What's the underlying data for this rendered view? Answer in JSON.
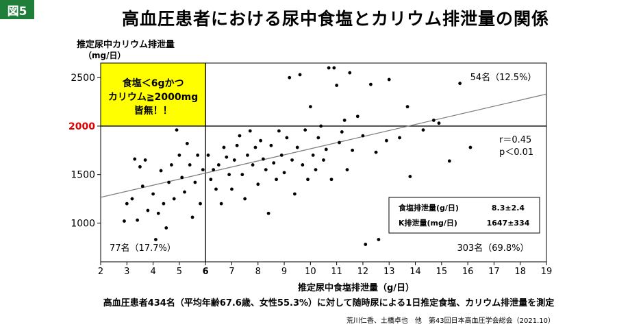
{
  "figure_tag": "図5",
  "title": "高血圧患者における尿中食塩とカリウム排泄量の関係",
  "caption": "高血圧患者434名（平均年齢67.6歳、女性55.3%）に対して随時尿による1日推定食塩、カリウム排泄量を測定",
  "source": "荒川仁香、土橋卓也　他　第43回日本高血圧学会総会（2021.10）",
  "colors": {
    "figure_tag_bg": "#1e7e3a",
    "highlight_box": "#ffff00",
    "threshold_label": "#e00000",
    "points": "#000000",
    "regression_line": "#808080"
  },
  "chart_data": {
    "type": "scatter",
    "xlabel": "推定尿中食塩排泄量（g/日）",
    "ylabel": "推定尿中カリウム排泄量",
    "ylabel_unit": "（mg/日）",
    "xlim": [
      2,
      19
    ],
    "ylim": [
      600,
      2650
    ],
    "xticks": [
      2,
      3,
      4,
      5,
      6,
      7,
      8,
      9,
      10,
      11,
      12,
      13,
      14,
      15,
      16,
      17,
      18,
      19
    ],
    "yticks": [
      1000,
      1500,
      2000,
      2500
    ],
    "highlight_x_tick": 6,
    "highlight_y_tick": 2000,
    "thresholds": {
      "x": 6,
      "y": 2000
    },
    "quadrant_labels": {
      "top_left": "食塩＜6gかつ\nカリウム≧2000mg\n皆無！！",
      "top_right": "54名（12.5%）",
      "bottom_left": "77名（17.7%）",
      "bottom_right": "303名（69.8%）"
    },
    "stats_annotation": "r＝0.45\np＜0.01",
    "summary_table": [
      {
        "label": "食塩排泄量(g/日)",
        "value": "8.3±2.4"
      },
      {
        "label": "K排泄量(mg/日)",
        "value": "1647±334"
      }
    ],
    "regression": {
      "x": [
        2,
        19
      ],
      "y": [
        1265,
        2330
      ]
    },
    "points": [
      [
        2.9,
        1020
      ],
      [
        3.0,
        1200
      ],
      [
        3.2,
        1250
      ],
      [
        3.3,
        1660
      ],
      [
        3.4,
        1030
      ],
      [
        3.5,
        1580
      ],
      [
        3.6,
        1380
      ],
      [
        3.7,
        1650
      ],
      [
        3.8,
        1130
      ],
      [
        4.0,
        1300
      ],
      [
        4.1,
        830
      ],
      [
        4.2,
        1100
      ],
      [
        4.3,
        1540
      ],
      [
        4.4,
        1200
      ],
      [
        4.5,
        950
      ],
      [
        4.6,
        1420
      ],
      [
        4.7,
        1600
      ],
      [
        4.8,
        1250
      ],
      [
        4.9,
        1960
      ],
      [
        5.0,
        1700
      ],
      [
        5.1,
        1470
      ],
      [
        5.2,
        1320
      ],
      [
        5.3,
        1820
      ],
      [
        5.4,
        1600
      ],
      [
        5.5,
        1060
      ],
      [
        5.6,
        1420
      ],
      [
        5.7,
        1700
      ],
      [
        5.8,
        1200
      ],
      [
        5.9,
        1550
      ],
      [
        6.1,
        1700
      ],
      [
        6.2,
        1450
      ],
      [
        6.3,
        1550
      ],
      [
        6.4,
        1350
      ],
      [
        6.5,
        1600
      ],
      [
        6.6,
        1200
      ],
      [
        6.7,
        1780
      ],
      [
        6.8,
        1680
      ],
      [
        6.9,
        1500
      ],
      [
        7.0,
        1350
      ],
      [
        7.1,
        1650
      ],
      [
        7.2,
        1800
      ],
      [
        7.3,
        1900
      ],
      [
        7.4,
        1500
      ],
      [
        7.5,
        1250
      ],
      [
        7.6,
        1700
      ],
      [
        7.7,
        1950
      ],
      [
        7.8,
        1600
      ],
      [
        7.9,
        1780
      ],
      [
        8.0,
        1400
      ],
      [
        8.1,
        1850
      ],
      [
        8.2,
        1660
      ],
      [
        8.3,
        1550
      ],
      [
        8.4,
        1100
      ],
      [
        8.5,
        1800
      ],
      [
        8.6,
        1620
      ],
      [
        8.7,
        1450
      ],
      [
        8.8,
        1950
      ],
      [
        8.9,
        1700
      ],
      [
        9.0,
        1520
      ],
      [
        9.1,
        1880
      ],
      [
        9.2,
        2500
      ],
      [
        9.3,
        1650
      ],
      [
        9.4,
        1300
      ],
      [
        9.5,
        1780
      ],
      [
        9.6,
        2530
      ],
      [
        9.7,
        1600
      ],
      [
        9.8,
        1960
      ],
      [
        9.9,
        1450
      ],
      [
        10.0,
        2200
      ],
      [
        10.1,
        1700
      ],
      [
        10.2,
        1550
      ],
      [
        10.3,
        1880
      ],
      [
        10.4,
        2000
      ],
      [
        10.5,
        1650
      ],
      [
        10.6,
        1760
      ],
      [
        10.7,
        2600
      ],
      [
        10.8,
        1450
      ],
      [
        10.9,
        2600
      ],
      [
        11.0,
        2420
      ],
      [
        11.1,
        1830
      ],
      [
        11.2,
        1940
      ],
      [
        11.3,
        2060
      ],
      [
        11.4,
        1550
      ],
      [
        11.5,
        2550
      ],
      [
        11.6,
        1750
      ],
      [
        11.8,
        2100
      ],
      [
        12.0,
        1900
      ],
      [
        12.1,
        780
      ],
      [
        12.3,
        2430
      ],
      [
        12.5,
        1730
      ],
      [
        12.6,
        830
      ],
      [
        12.9,
        1850
      ],
      [
        13.0,
        2480
      ],
      [
        13.4,
        1880
      ],
      [
        13.7,
        2200
      ],
      [
        13.8,
        1480
      ],
      [
        14.3,
        1960
      ],
      [
        14.7,
        2060
      ],
      [
        14.9,
        2030
      ],
      [
        15.3,
        1640
      ],
      [
        15.7,
        2440
      ],
      [
        16.1,
        1780
      ]
    ],
    "series_title": ""
  }
}
